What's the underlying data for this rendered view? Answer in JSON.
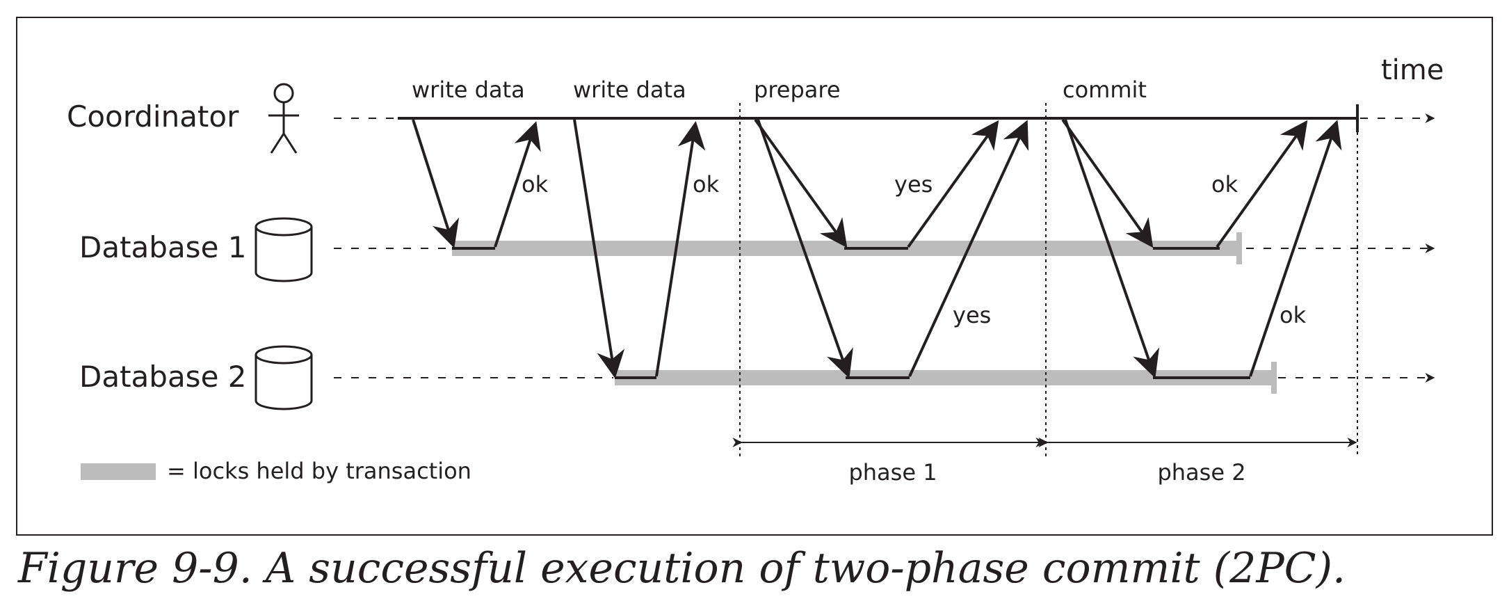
{
  "diagram": {
    "time_label": "time",
    "participants": [
      {
        "key": "coordinator",
        "label": "Coordinator",
        "icon": "person-icon"
      },
      {
        "key": "db1",
        "label": "Database 1",
        "icon": "database-icon"
      },
      {
        "key": "db2",
        "label": "Database 2",
        "icon": "database-icon"
      }
    ],
    "messages": {
      "write_data_1": "write data",
      "write_data_2": "write data",
      "prepare": "prepare",
      "commit": "commit",
      "ok_1": "ok",
      "ok_2": "ok",
      "yes_1": "yes",
      "yes_2": "yes",
      "ok_3": "ok",
      "ok_4": "ok"
    },
    "legend": "= locks held by transaction",
    "phases": [
      "phase 1",
      "phase 2"
    ],
    "colors": {
      "ink": "#231f20",
      "lock": "#bcbcbc"
    }
  },
  "caption": "Figure 9-9. A successful execution of two-phase commit (2PC)."
}
